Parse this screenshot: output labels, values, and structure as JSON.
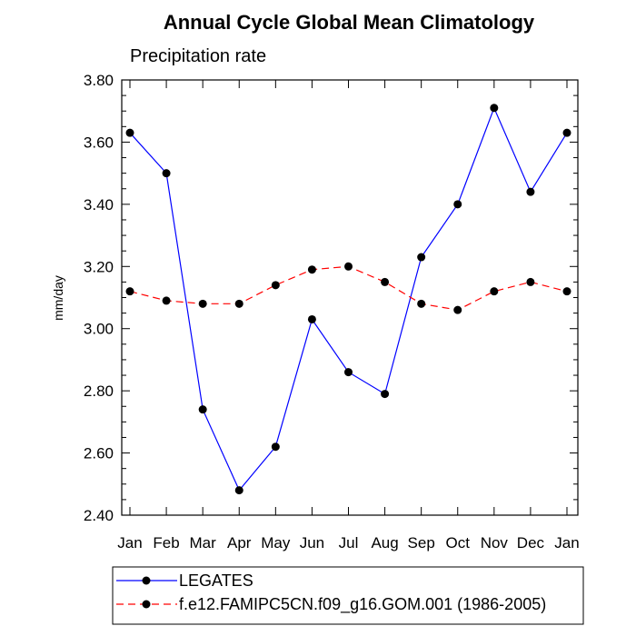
{
  "chart_data": {
    "type": "line",
    "title": "Annual Cycle Global Mean Climatology",
    "subtitle": "Precipitation rate",
    "xlabel": "",
    "ylabel": "mm/day",
    "ylim": [
      2.4,
      3.8
    ],
    "yticks": [
      "2.40",
      "2.60",
      "2.80",
      "3.00",
      "3.20",
      "3.40",
      "3.60",
      "3.80"
    ],
    "categories": [
      "Jan",
      "Feb",
      "Mar",
      "Apr",
      "May",
      "Jun",
      "Jul",
      "Aug",
      "Sep",
      "Oct",
      "Nov",
      "Dec",
      "Jan"
    ],
    "grid": false,
    "legend_position": "bottom",
    "series": [
      {
        "name": "LEGATES",
        "color": "#0000ff",
        "line_style": "solid",
        "marker": "filled-circle",
        "values": [
          3.63,
          3.5,
          2.74,
          2.48,
          2.62,
          3.03,
          2.86,
          2.79,
          3.23,
          3.4,
          3.71,
          3.44,
          3.63
        ]
      },
      {
        "name": "f.e12.FAMIPC5CN.f09_g16.GOM.001 (1986-2005)",
        "color": "#ff0000",
        "line_style": "dashed",
        "marker": "filled-circle",
        "values": [
          3.12,
          3.09,
          3.08,
          3.08,
          3.14,
          3.19,
          3.2,
          3.15,
          3.08,
          3.06,
          3.12,
          3.15,
          3.12
        ]
      }
    ]
  }
}
